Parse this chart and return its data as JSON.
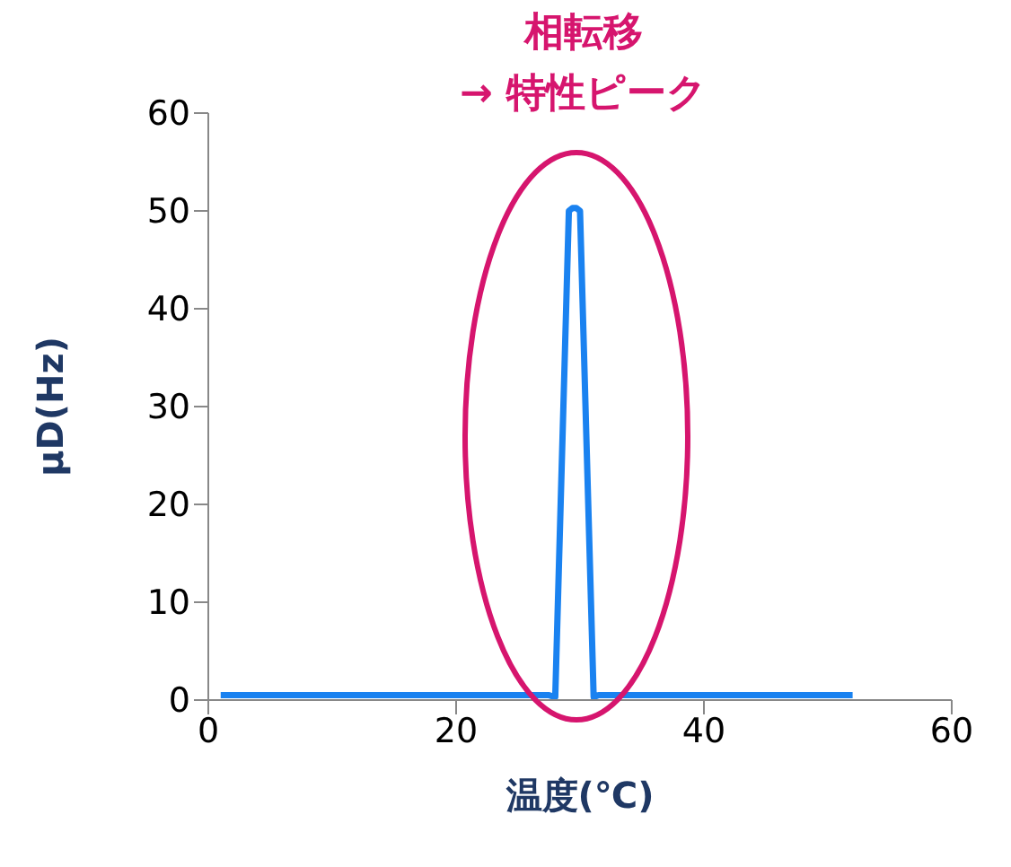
{
  "chart_data": {
    "type": "line",
    "xlabel": "温度(℃)",
    "ylabel": "μD(Hz)",
    "annotations": [
      "相転移",
      "→ 特性ピーク"
    ],
    "x": [
      1,
      27.5,
      28,
      29.1,
      29.4,
      29.7,
      30,
      31.1,
      31.5,
      52
    ],
    "series": [
      {
        "color": "#1a82f0",
        "values": [
          0.5,
          0.5,
          0.3,
          50,
          50.3,
          50.3,
          50,
          0.3,
          0.5,
          0.5
        ]
      }
    ],
    "xlim": [
      0,
      60
    ],
    "xticks": [
      0,
      20,
      40,
      60
    ],
    "ylim": [
      0,
      60
    ],
    "yticks": [
      0,
      10,
      20,
      30,
      40,
      50,
      60
    ],
    "grid": false,
    "legend": false,
    "marker": "none",
    "line_style": "solid"
  }
}
